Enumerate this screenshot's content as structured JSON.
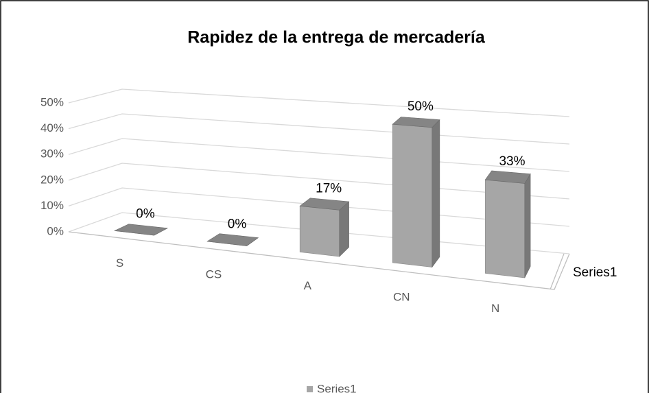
{
  "chart_data": {
    "type": "bar",
    "title": "Rapidez de la entrega de mercadería",
    "categories": [
      "S",
      "CS",
      "A",
      "CN",
      "N"
    ],
    "series": [
      {
        "name": "Series1",
        "color": "#a6a6a6",
        "values": [
          0,
          0,
          17,
          50,
          33
        ],
        "value_labels": [
          "0%",
          "0%",
          "17%",
          "50%",
          "33%"
        ]
      }
    ],
    "ylim": [
      0,
      50
    ],
    "yticks": [
      {
        "value": 0,
        "label": "0%"
      },
      {
        "value": 10,
        "label": "10%"
      },
      {
        "value": 20,
        "label": "20%"
      },
      {
        "value": 30,
        "label": "30%"
      },
      {
        "value": 40,
        "label": "40%"
      },
      {
        "value": 50,
        "label": "50%"
      }
    ],
    "grid": true,
    "legend": "bottom"
  }
}
